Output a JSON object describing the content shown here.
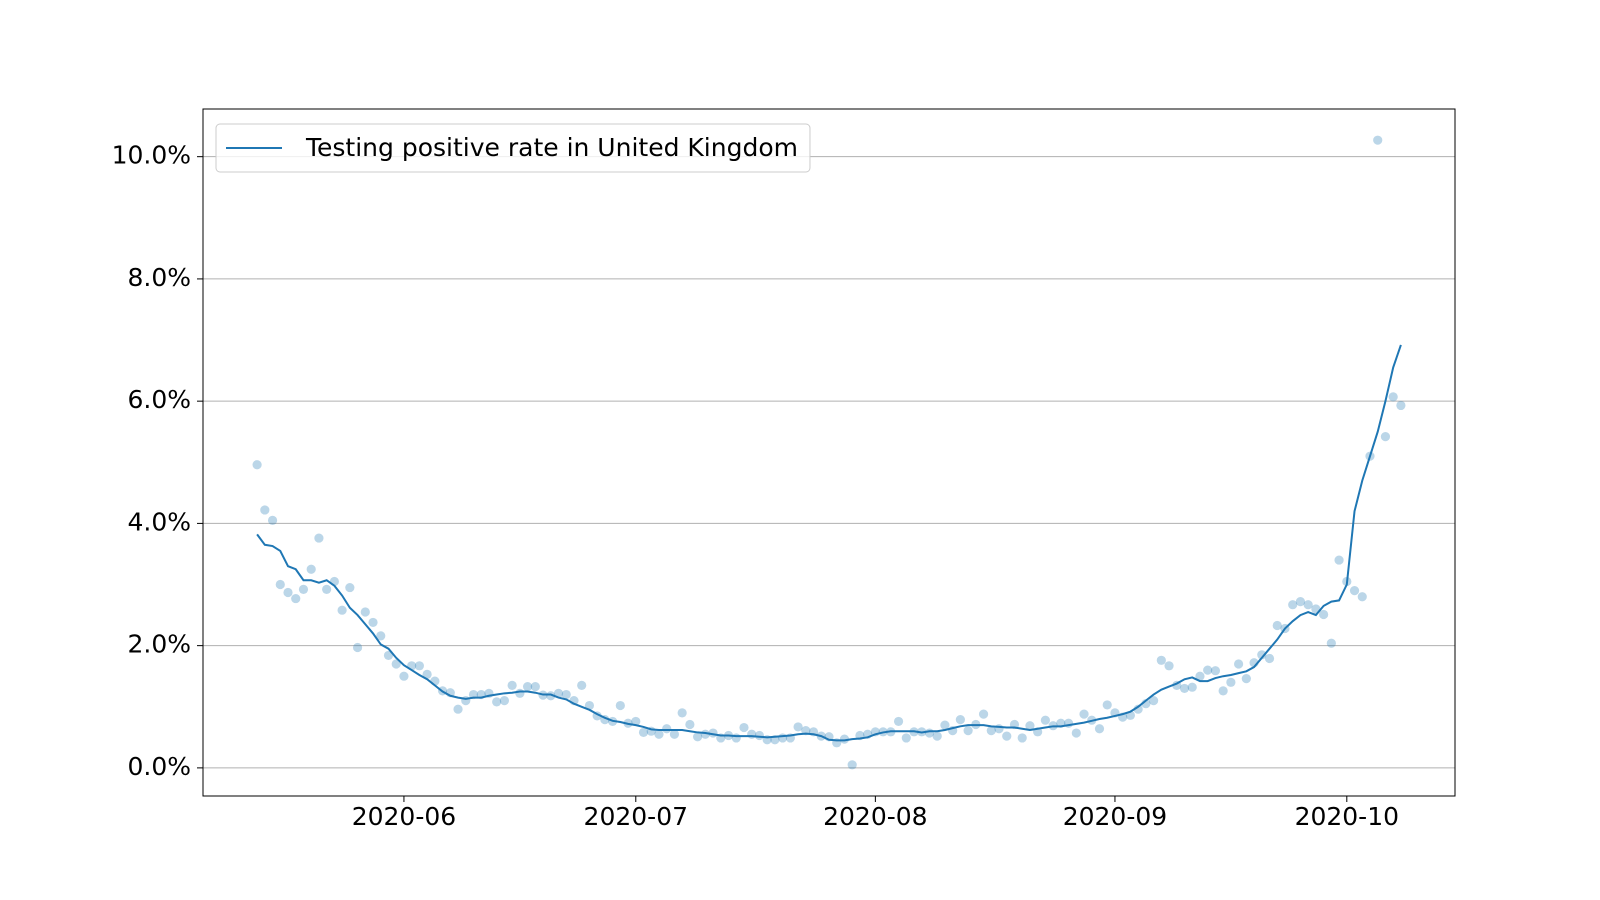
{
  "chart_data": {
    "type": "line",
    "legend": "upper left",
    "grid": "y",
    "xlim": [
      "2020-05-06",
      "2020-10-15"
    ],
    "xticks": [
      "2020-06",
      "2020-07",
      "2020-08",
      "2020-09",
      "2020-10"
    ],
    "ylim": [
      -0.46,
      10.78
    ],
    "yticks": [
      {
        "value": 0,
        "label": "0.0%"
      },
      {
        "value": 2,
        "label": "2.0%"
      },
      {
        "value": 4,
        "label": "4.0%"
      },
      {
        "value": 6,
        "label": "6.0%"
      },
      {
        "value": 8,
        "label": "8.0%"
      },
      {
        "value": 10,
        "label": "10.0%"
      }
    ],
    "x": [
      "2020-05-13",
      "2020-05-14",
      "2020-05-15",
      "2020-05-16",
      "2020-05-17",
      "2020-05-18",
      "2020-05-19",
      "2020-05-20",
      "2020-05-21",
      "2020-05-22",
      "2020-05-23",
      "2020-05-24",
      "2020-05-25",
      "2020-05-26",
      "2020-05-27",
      "2020-05-28",
      "2020-05-29",
      "2020-05-30",
      "2020-05-31",
      "2020-06-01",
      "2020-06-02",
      "2020-06-03",
      "2020-06-04",
      "2020-06-05",
      "2020-06-06",
      "2020-06-07",
      "2020-06-08",
      "2020-06-09",
      "2020-06-10",
      "2020-06-11",
      "2020-06-12",
      "2020-06-13",
      "2020-06-14",
      "2020-06-15",
      "2020-06-16",
      "2020-06-17",
      "2020-06-18",
      "2020-06-19",
      "2020-06-20",
      "2020-06-21",
      "2020-06-22",
      "2020-06-23",
      "2020-06-24",
      "2020-06-25",
      "2020-06-26",
      "2020-06-27",
      "2020-06-28",
      "2020-06-29",
      "2020-06-30",
      "2020-07-01",
      "2020-07-02",
      "2020-07-03",
      "2020-07-04",
      "2020-07-05",
      "2020-07-06",
      "2020-07-07",
      "2020-07-08",
      "2020-07-09",
      "2020-07-10",
      "2020-07-11",
      "2020-07-12",
      "2020-07-13",
      "2020-07-14",
      "2020-07-15",
      "2020-07-16",
      "2020-07-17",
      "2020-07-18",
      "2020-07-19",
      "2020-07-20",
      "2020-07-21",
      "2020-07-22",
      "2020-07-23",
      "2020-07-24",
      "2020-07-25",
      "2020-07-26",
      "2020-07-27",
      "2020-07-28",
      "2020-07-29",
      "2020-07-30",
      "2020-07-31",
      "2020-08-01",
      "2020-08-02",
      "2020-08-03",
      "2020-08-04",
      "2020-08-05",
      "2020-08-06",
      "2020-08-07",
      "2020-08-08",
      "2020-08-09",
      "2020-08-10",
      "2020-08-11",
      "2020-08-12",
      "2020-08-13",
      "2020-08-14",
      "2020-08-15",
      "2020-08-16",
      "2020-08-17",
      "2020-08-18",
      "2020-08-19",
      "2020-08-20",
      "2020-08-21",
      "2020-08-22",
      "2020-08-23",
      "2020-08-24",
      "2020-08-25",
      "2020-08-26",
      "2020-08-27",
      "2020-08-28",
      "2020-08-29",
      "2020-08-30",
      "2020-08-31",
      "2020-09-01",
      "2020-09-02",
      "2020-09-03",
      "2020-09-04",
      "2020-09-05",
      "2020-09-06",
      "2020-09-07",
      "2020-09-08",
      "2020-09-09",
      "2020-09-10",
      "2020-09-11",
      "2020-09-12",
      "2020-09-13",
      "2020-09-14",
      "2020-09-15",
      "2020-09-16",
      "2020-09-17",
      "2020-09-18",
      "2020-09-19",
      "2020-09-20",
      "2020-09-21",
      "2020-09-22",
      "2020-09-23",
      "2020-09-24",
      "2020-09-25",
      "2020-09-26",
      "2020-09-27",
      "2020-09-28",
      "2020-09-29",
      "2020-09-30",
      "2020-10-01",
      "2020-10-02",
      "2020-10-03",
      "2020-10-04",
      "2020-10-05",
      "2020-10-06",
      "2020-10-07",
      "2020-10-08"
    ],
    "series": [
      {
        "type": "scatter",
        "color": "#1f77b4",
        "opacity": 0.3,
        "values": [
          4.96,
          4.22,
          4.05,
          3.0,
          2.87,
          2.77,
          2.92,
          3.25,
          3.76,
          2.92,
          3.05,
          2.58,
          2.95,
          1.97,
          2.55,
          2.38,
          2.16,
          1.84,
          1.7,
          1.5,
          1.67,
          1.67,
          1.53,
          1.42,
          1.26,
          1.23,
          0.96,
          1.1,
          1.2,
          1.2,
          1.22,
          1.08,
          1.1,
          1.35,
          1.22,
          1.33,
          1.33,
          1.19,
          1.18,
          1.22,
          1.2,
          1.1,
          1.35,
          1.02,
          0.85,
          0.79,
          0.76,
          1.02,
          0.73,
          0.76,
          0.58,
          0.6,
          0.55,
          0.64,
          0.55,
          0.9,
          0.71,
          0.51,
          0.55,
          0.57,
          0.49,
          0.53,
          0.49,
          0.66,
          0.55,
          0.53,
          0.46,
          0.46,
          0.49,
          0.49,
          0.67,
          0.61,
          0.59,
          0.52,
          0.51,
          0.41,
          0.47,
          0.05,
          0.53,
          0.55,
          0.59,
          0.59,
          0.59,
          0.76,
          0.49,
          0.59,
          0.59,
          0.57,
          0.52,
          0.7,
          0.61,
          0.79,
          0.61,
          0.71,
          0.88,
          0.61,
          0.64,
          0.52,
          0.71,
          0.49,
          0.69,
          0.59,
          0.78,
          0.69,
          0.73,
          0.73,
          0.57,
          0.88,
          0.78,
          0.64,
          1.03,
          0.9,
          0.83,
          0.86,
          0.96,
          1.05,
          1.1,
          1.76,
          1.67,
          1.35,
          1.3,
          1.32,
          1.5,
          1.6,
          1.59,
          1.26,
          1.4,
          1.7,
          1.46,
          1.72,
          1.85,
          1.79,
          2.33,
          2.28,
          2.67,
          2.72,
          2.67,
          2.6,
          2.51,
          2.04,
          3.4,
          3.05,
          2.9,
          2.8,
          5.1,
          10.27,
          5.42,
          6.07,
          5.93
        ]
      },
      {
        "type": "line",
        "name": "Testing positive rate in United Kingdom",
        "color": "#1f77b4",
        "values": [
          3.82,
          3.65,
          3.63,
          3.55,
          3.3,
          3.25,
          3.07,
          3.07,
          3.03,
          3.07,
          2.98,
          2.82,
          2.62,
          2.5,
          2.35,
          2.2,
          2.02,
          1.95,
          1.8,
          1.68,
          1.6,
          1.52,
          1.45,
          1.35,
          1.25,
          1.18,
          1.15,
          1.13,
          1.15,
          1.15,
          1.18,
          1.2,
          1.22,
          1.23,
          1.25,
          1.25,
          1.23,
          1.2,
          1.2,
          1.15,
          1.12,
          1.05,
          1.0,
          0.95,
          0.88,
          0.82,
          0.77,
          0.75,
          0.72,
          0.7,
          0.67,
          0.63,
          0.62,
          0.62,
          0.62,
          0.62,
          0.6,
          0.58,
          0.57,
          0.55,
          0.53,
          0.53,
          0.52,
          0.52,
          0.52,
          0.51,
          0.5,
          0.51,
          0.52,
          0.53,
          0.55,
          0.56,
          0.55,
          0.52,
          0.46,
          0.45,
          0.45,
          0.47,
          0.48,
          0.5,
          0.55,
          0.58,
          0.6,
          0.6,
          0.6,
          0.6,
          0.58,
          0.6,
          0.6,
          0.62,
          0.65,
          0.68,
          0.7,
          0.7,
          0.7,
          0.68,
          0.67,
          0.66,
          0.66,
          0.64,
          0.62,
          0.64,
          0.66,
          0.68,
          0.68,
          0.7,
          0.72,
          0.74,
          0.77,
          0.8,
          0.82,
          0.85,
          0.88,
          0.92,
          1.0,
          1.1,
          1.2,
          1.28,
          1.33,
          1.38,
          1.45,
          1.48,
          1.42,
          1.42,
          1.47,
          1.5,
          1.52,
          1.55,
          1.58,
          1.65,
          1.8,
          1.95,
          2.1,
          2.28,
          2.4,
          2.5,
          2.55,
          2.5,
          2.65,
          2.72,
          2.74,
          3.0,
          4.2,
          4.7,
          5.1,
          5.5,
          6.0,
          6.55,
          6.92
        ]
      }
    ]
  }
}
